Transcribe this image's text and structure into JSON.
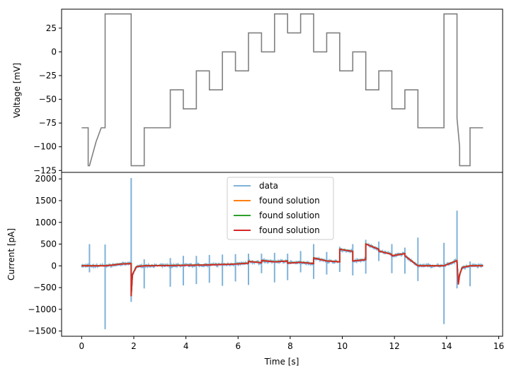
{
  "chart_data": [
    {
      "type": "line",
      "ylabel": "Voltage [mV]",
      "xlim": [
        -0.77,
        16.15
      ],
      "ylim": [
        -127,
        45
      ],
      "xticks": [
        0,
        2,
        4,
        6,
        8,
        10,
        12,
        14,
        16
      ],
      "yticks": [
        25,
        0,
        -25,
        -50,
        -75,
        -100,
        -125
      ],
      "ytick_labels": [
        "25",
        "0",
        "−25",
        "−50",
        "−75",
        "−100",
        "−125"
      ],
      "series": [
        {
          "color": "#808080",
          "x": [
            0,
            0.25,
            0.25,
            0.3,
            0.55,
            0.75,
            0.9,
            0.9,
            1.9,
            1.9,
            2.4,
            2.4,
            3.4,
            3.4,
            3.9,
            3.9,
            4.4,
            4.4,
            4.9,
            4.9,
            5.4,
            5.4,
            5.9,
            5.9,
            6.4,
            6.4,
            6.9,
            6.9,
            7.4,
            7.4,
            7.9,
            7.9,
            8.4,
            8.4,
            8.9,
            8.9,
            9.4,
            9.4,
            9.9,
            9.9,
            10.4,
            10.4,
            10.9,
            10.9,
            11.4,
            11.4,
            11.9,
            11.9,
            12.4,
            12.4,
            12.9,
            12.9,
            13.9,
            13.9,
            14.4,
            14.4,
            14.5,
            14.5,
            14.9,
            14.9,
            15.4
          ],
          "y": [
            -80,
            -80,
            -120,
            -120,
            -95,
            -80,
            -80,
            40,
            40,
            -120,
            -120,
            -80,
            -80,
            -40,
            -40,
            -60,
            -60,
            -20,
            -20,
            -40,
            -40,
            0,
            0,
            -20,
            -20,
            20,
            20,
            0,
            0,
            40,
            40,
            20,
            20,
            40,
            40,
            0,
            0,
            20,
            20,
            -20,
            -20,
            0,
            0,
            -40,
            -40,
            -20,
            -20,
            -60,
            -60,
            -40,
            -40,
            -80,
            -80,
            40,
            40,
            -70,
            -100,
            -120,
            -120,
            -80,
            -80
          ]
        }
      ]
    },
    {
      "type": "line",
      "xlabel": "Time [s]",
      "ylabel": "Current [pA]",
      "xlim": [
        -0.77,
        16.15
      ],
      "ylim": [
        -1620,
        2150
      ],
      "xticks": [
        0,
        2,
        4,
        6,
        8,
        10,
        12,
        14,
        16
      ],
      "xtick_labels": [
        "0",
        "2",
        "4",
        "6",
        "8",
        "10",
        "12",
        "14",
        "16"
      ],
      "yticks": [
        2000,
        1500,
        1000,
        500,
        0,
        -500,
        -1000,
        -1500
      ],
      "ytick_labels": [
        "2000",
        "1500",
        "1000",
        "500",
        "0",
        "−500",
        "−1000",
        "−1500"
      ],
      "legend_position": "top-center",
      "series": [
        {
          "name": "data",
          "color": "#7fb2d9"
        },
        {
          "name": "found solution",
          "color": "#ff7f0e"
        },
        {
          "name": "found solution",
          "color": "#2ca02c"
        },
        {
          "name": "found solution",
          "color": "#d62728"
        }
      ],
      "model_trace_x": [
        0,
        0.9,
        1.1,
        1.5,
        1.9,
        1.9,
        1.95,
        2.1,
        2.4,
        3.4,
        3.9,
        4.4,
        4.9,
        5.4,
        5.9,
        6.4,
        6.4,
        6.9,
        6.9,
        7.4,
        7.9,
        7.9,
        8.4,
        8.9,
        8.9,
        9.4,
        9.9,
        9.9,
        10.4,
        10.4,
        10.9,
        10.9,
        11.4,
        11.4,
        11.9,
        11.9,
        12.4,
        12.4,
        12.9,
        13.9,
        13.9,
        14.4,
        14.45,
        14.5,
        14.6,
        14.9,
        15.4
      ],
      "model_trace_y": [
        0,
        0,
        10,
        40,
        50,
        -700,
        -200,
        -20,
        0,
        5,
        10,
        15,
        20,
        30,
        40,
        60,
        100,
        70,
        120,
        90,
        110,
        60,
        80,
        50,
        180,
        110,
        90,
        380,
        330,
        110,
        140,
        500,
        380,
        340,
        260,
        230,
        280,
        230,
        0,
        0,
        0,
        120,
        -430,
        -200,
        -40,
        0,
        0
      ],
      "spikes_x": [
        0.3,
        0.9,
        1.9,
        2.4,
        3.4,
        3.9,
        4.4,
        4.9,
        5.4,
        5.9,
        6.4,
        6.9,
        7.4,
        7.9,
        8.4,
        8.9,
        9.4,
        9.9,
        10.4,
        10.9,
        11.4,
        11.9,
        12.4,
        12.9,
        13.9,
        14.4,
        14.9
      ],
      "spikes_high": [
        500,
        490,
        2020,
        150,
        180,
        230,
        230,
        250,
        260,
        270,
        280,
        280,
        300,
        280,
        340,
        500,
        320,
        440,
        500,
        600,
        560,
        500,
        420,
        650,
        530,
        1270,
        100
      ],
      "spikes_low": [
        -150,
        -1460,
        -830,
        -520,
        -480,
        -450,
        -420,
        -390,
        -460,
        -360,
        -440,
        -170,
        -380,
        -330,
        -150,
        -300,
        -200,
        -140,
        -220,
        -180,
        110,
        -170,
        -180,
        -350,
        -1340,
        -520,
        -470
      ]
    }
  ]
}
